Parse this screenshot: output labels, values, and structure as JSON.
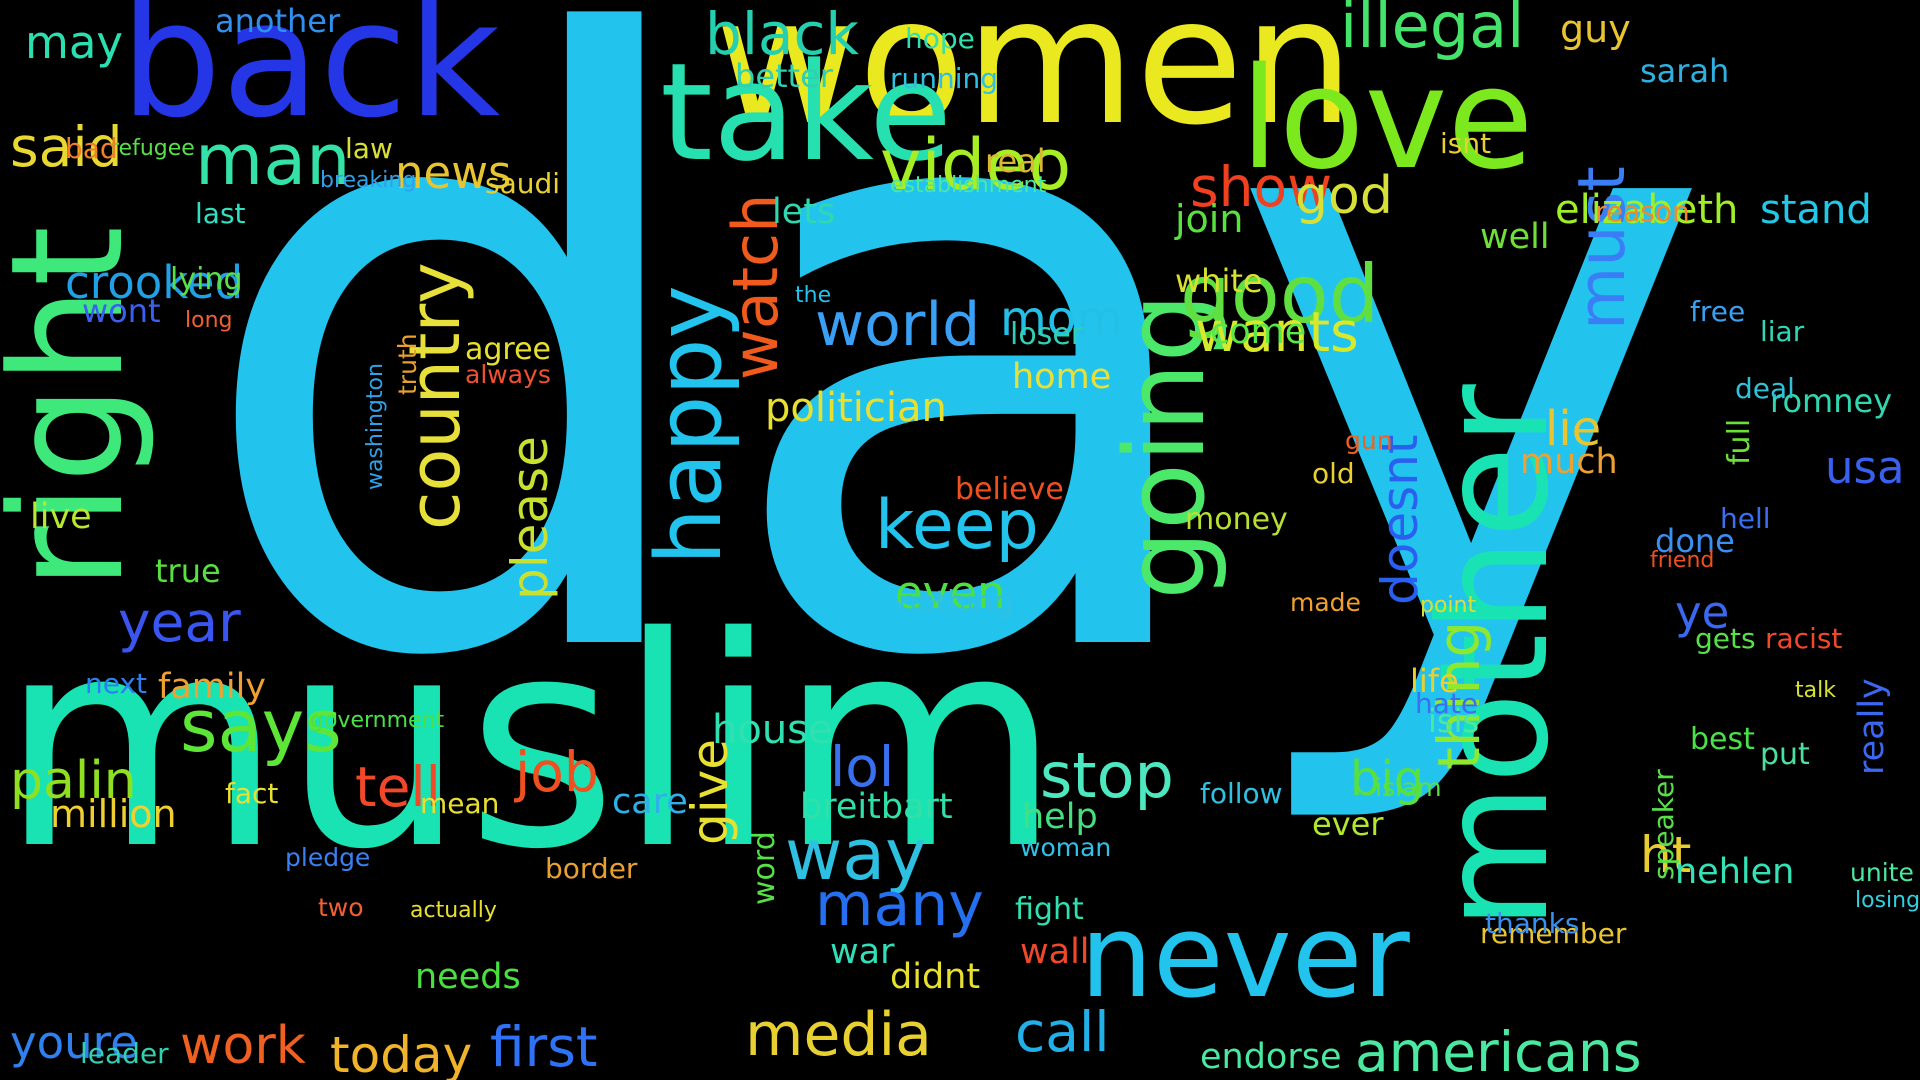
{
  "colors": {
    "background": "#000000",
    "palette": [
      "#22c4ee",
      "#19e3b3",
      "#f0e820",
      "#2436e6",
      "#7ce81e",
      "#2fb3f5",
      "#f05a1c",
      "#25d7d0",
      "#e8a62a",
      "#44ee66"
    ]
  },
  "words": [
    {
      "text": "day",
      "color": "#22c4ee"
    },
    {
      "text": "muslim",
      "color": "#19e3b3"
    },
    {
      "text": "women",
      "color": "#eae81e"
    },
    {
      "text": "back",
      "color": "#2436e6"
    },
    {
      "text": "right",
      "color": "#3ee87a"
    },
    {
      "text": "mother",
      "color": "#19e3b3"
    },
    {
      "text": "take",
      "color": "#27e0b0"
    },
    {
      "text": "love",
      "color": "#7ce81e"
    },
    {
      "text": "never",
      "color": "#22c4ee"
    },
    {
      "text": "going",
      "color": "#4be86a"
    },
    {
      "text": "happy",
      "color": "#22c4ee"
    },
    {
      "text": "video",
      "color": "#a8ee24"
    },
    {
      "text": "good",
      "color": "#5fe040"
    },
    {
      "text": "illegal",
      "color": "#46e36a"
    },
    {
      "text": "country",
      "color": "#e8e03a"
    },
    {
      "text": "man",
      "color": "#34e2a8"
    },
    {
      "text": "world",
      "color": "#3aa0f5"
    },
    {
      "text": "wants",
      "color": "#d8e82a"
    },
    {
      "text": "watch",
      "color": "#f05a1c"
    },
    {
      "text": "keep",
      "color": "#22c4ee"
    },
    {
      "text": "says",
      "color": "#5de638"
    },
    {
      "text": "black",
      "color": "#24d0b0"
    },
    {
      "text": "show",
      "color": "#f04020"
    },
    {
      "text": "must",
      "color": "#3a7ef5"
    },
    {
      "text": "media",
      "color": "#e8d030"
    },
    {
      "text": "first",
      "color": "#2f72f5"
    },
    {
      "text": "americans",
      "color": "#4ae8a0"
    },
    {
      "text": "call",
      "color": "#22b0e8"
    },
    {
      "text": "stop",
      "color": "#4ee8c0"
    },
    {
      "text": "way",
      "color": "#2dc0e0"
    },
    {
      "text": "many",
      "color": "#2570f0"
    },
    {
      "text": "work",
      "color": "#f06020"
    },
    {
      "text": "today",
      "color": "#f0b42a"
    },
    {
      "text": "tell",
      "color": "#f04828"
    },
    {
      "text": "job",
      "color": "#f05020"
    },
    {
      "text": "palin",
      "color": "#8ee020"
    },
    {
      "text": "said",
      "color": "#e8d830"
    },
    {
      "text": "may",
      "color": "#2ae0b0"
    },
    {
      "text": "year",
      "color": "#3a56f0"
    },
    {
      "text": "lol",
      "color": "#3870f0"
    },
    {
      "text": "crooked",
      "color": "#22a0e6"
    },
    {
      "text": "news",
      "color": "#e8c430"
    },
    {
      "text": "elizabeth",
      "color": "#a0ee28"
    },
    {
      "text": "thing",
      "color": "#8ee830"
    },
    {
      "text": "ht",
      "color": "#e8cc30"
    },
    {
      "text": "doesnt",
      "color": "#2a60f0"
    },
    {
      "text": "politician",
      "color": "#e8e030"
    },
    {
      "text": "please",
      "color": "#c8e030"
    },
    {
      "text": "mom",
      "color": "#22c0e6"
    },
    {
      "text": "lie",
      "color": "#e8c430"
    },
    {
      "text": "big",
      "color": "#58e040"
    },
    {
      "text": "youre",
      "color": "#3080f0"
    },
    {
      "text": "give",
      "color": "#e8e030"
    },
    {
      "text": "god",
      "color": "#d8e038"
    },
    {
      "text": "house",
      "color": "#30e0b0"
    },
    {
      "text": "breitbart",
      "color": "#30e0a8"
    },
    {
      "text": "usa",
      "color": "#3a60f0"
    },
    {
      "text": "million",
      "color": "#f0d030"
    },
    {
      "text": "stand",
      "color": "#22c8e8"
    },
    {
      "text": "endorse",
      "color": "#4ae8a0"
    },
    {
      "text": "wall",
      "color": "#f04828"
    },
    {
      "text": "even",
      "color": "#4ee040"
    },
    {
      "text": "nehlen",
      "color": "#34e2b8"
    },
    {
      "text": "war",
      "color": "#30e0b8"
    },
    {
      "text": "didnt",
      "color": "#e8e030"
    },
    {
      "text": "join",
      "color": "#5ae040"
    },
    {
      "text": "family",
      "color": "#f0a030"
    },
    {
      "text": "well",
      "color": "#6ee038"
    },
    {
      "text": "much",
      "color": "#f0a030"
    },
    {
      "text": "come",
      "color": "#58e848"
    },
    {
      "text": "lets",
      "color": "#30d8b0"
    },
    {
      "text": "needs",
      "color": "#4ae040"
    },
    {
      "text": "isis",
      "color": "#4ae8a0"
    },
    {
      "text": "help",
      "color": "#44e080"
    },
    {
      "text": "ye",
      "color": "#3a68f0"
    },
    {
      "text": "next",
      "color": "#2a80f0"
    },
    {
      "text": "live",
      "color": "#b8e830"
    },
    {
      "text": "life",
      "color": "#e8d030"
    },
    {
      "text": "hate",
      "color": "#3a70f0"
    },
    {
      "text": "real",
      "color": "#d8b830"
    },
    {
      "text": "care",
      "color": "#30b0e8"
    },
    {
      "text": "fight",
      "color": "#30e0b0"
    },
    {
      "text": "true",
      "color": "#58e040"
    },
    {
      "text": "ever",
      "color": "#b0e830"
    },
    {
      "text": "full",
      "color": "#6ae038"
    },
    {
      "text": "done",
      "color": "#3a90f0"
    },
    {
      "text": "remember",
      "color": "#e8c430"
    },
    {
      "text": "thanks",
      "color": "#3a90f0"
    },
    {
      "text": "white",
      "color": "#d8e030"
    },
    {
      "text": "money",
      "color": "#b8e030"
    },
    {
      "text": "guy",
      "color": "#e8c430"
    },
    {
      "text": "sarah",
      "color": "#30b0e0"
    },
    {
      "text": "better",
      "color": "#30d0b0"
    },
    {
      "text": "running",
      "color": "#30c0e0"
    },
    {
      "text": "hope",
      "color": "#30e0b0"
    },
    {
      "text": "another",
      "color": "#3090f0"
    },
    {
      "text": "refugee",
      "color": "#58e048"
    },
    {
      "text": "bad",
      "color": "#f08028"
    },
    {
      "text": "last",
      "color": "#30e0c0"
    },
    {
      "text": "breaking",
      "color": "#30a0e8"
    },
    {
      "text": "saudi",
      "color": "#e8d030"
    },
    {
      "text": "law",
      "color": "#d8e038"
    },
    {
      "text": "isnt",
      "color": "#e8d030"
    },
    {
      "text": "reason",
      "color": "#f08830"
    },
    {
      "text": "establishment",
      "color": "#4ae8a0"
    },
    {
      "text": "lying",
      "color": "#58e048"
    },
    {
      "text": "wont",
      "color": "#3a60f0"
    },
    {
      "text": "long",
      "color": "#f06030"
    },
    {
      "text": "home",
      "color": "#e8e038"
    },
    {
      "text": "loser",
      "color": "#30d0b8"
    },
    {
      "text": "agree",
      "color": "#e8e030"
    },
    {
      "text": "always",
      "color": "#f05030"
    },
    {
      "text": "truth",
      "color": "#e8a030"
    },
    {
      "text": "washington",
      "color": "#30a0e8"
    },
    {
      "text": "nothing",
      "color": "#30c0e0"
    },
    {
      "text": "believe",
      "color": "#f05020"
    },
    {
      "text": "romney",
      "color": "#30d8b0"
    },
    {
      "text": "deal",
      "color": "#30c0d8"
    },
    {
      "text": "liar",
      "color": "#30d8b8"
    },
    {
      "text": "free",
      "color": "#3aa0f0"
    },
    {
      "text": "hell",
      "color": "#3a70f0"
    },
    {
      "text": "friend",
      "color": "#f05020"
    },
    {
      "text": "gets",
      "color": "#58e048"
    },
    {
      "text": "racist",
      "color": "#f04828"
    },
    {
      "text": "best",
      "color": "#4ae048"
    },
    {
      "text": "put",
      "color": "#4ae0a0"
    },
    {
      "text": "talk",
      "color": "#d8e030"
    },
    {
      "text": "really",
      "color": "#3a68f0"
    },
    {
      "text": "speaker",
      "color": "#58e048"
    },
    {
      "text": "unite",
      "color": "#4ae8a0"
    },
    {
      "text": "losing",
      "color": "#30d0e0"
    },
    {
      "text": "border",
      "color": "#e8a030"
    },
    {
      "text": "woman",
      "color": "#30c0e8"
    },
    {
      "text": "word",
      "color": "#58e048"
    },
    {
      "text": "government",
      "color": "#4ae048"
    },
    {
      "text": "fact",
      "color": "#e8e030"
    },
    {
      "text": "mean",
      "color": "#e8e030"
    },
    {
      "text": "pledge",
      "color": "#3a80f0"
    },
    {
      "text": "two",
      "color": "#f06030"
    },
    {
      "text": "actually",
      "color": "#e8e030"
    },
    {
      "text": "leader",
      "color": "#30d0b0"
    },
    {
      "text": "follow",
      "color": "#30c0e0"
    },
    {
      "text": "islam",
      "color": "#58e048"
    },
    {
      "text": "old",
      "color": "#e8d030"
    },
    {
      "text": "gun",
      "color": "#f06020"
    },
    {
      "text": "made",
      "color": "#f0a030"
    },
    {
      "text": "point",
      "color": "#d8e038"
    },
    {
      "text": "the",
      "color": "#22c4ee"
    }
  ]
}
